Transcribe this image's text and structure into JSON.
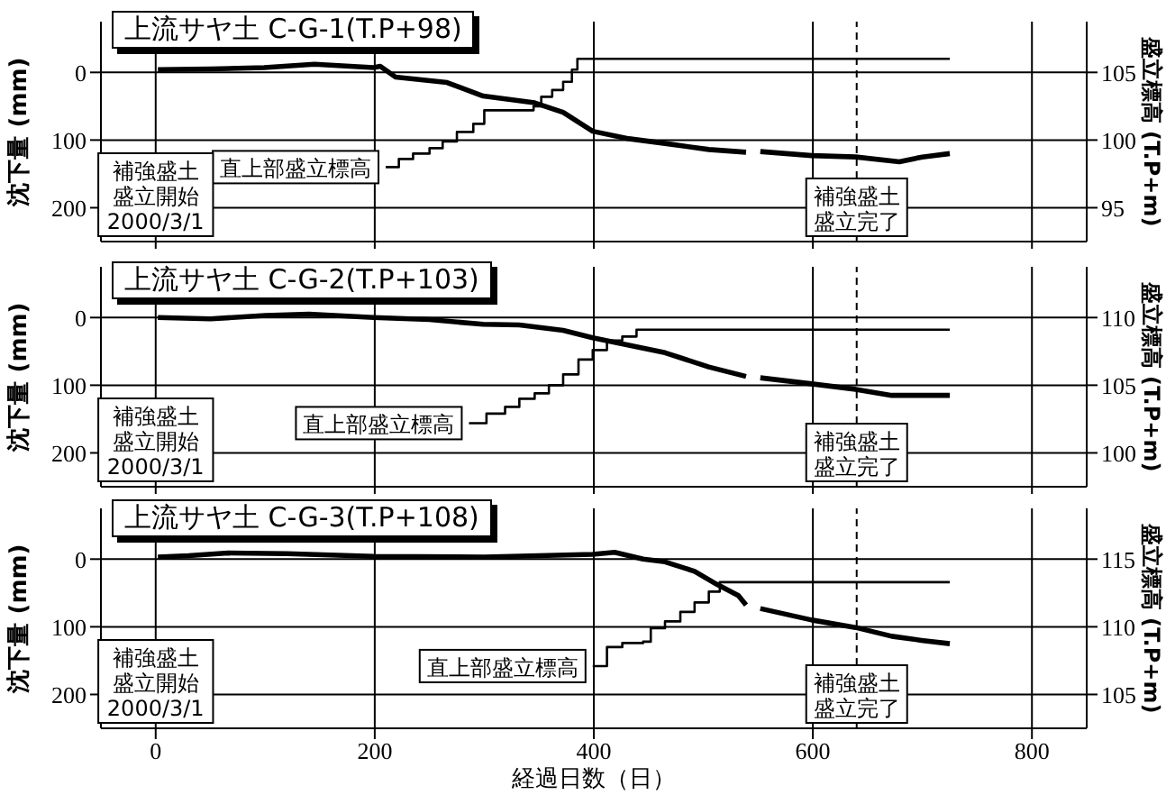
{
  "chart_data": [
    {
      "type": "line",
      "title": "上流サヤ土 C-G-1(T.P+98)",
      "ylabel": "沈下量 (mm)",
      "y2label": "盛立標高 (T.P+m)",
      "xlim": [
        -50,
        850
      ],
      "xticks": [
        0,
        200,
        400,
        600,
        800
      ],
      "ylim": [
        250,
        -75
      ],
      "yticks": [
        0,
        100,
        200
      ],
      "y2lim": [
        92.5,
        108.75
      ],
      "y2ticks": [
        95,
        100,
        105
      ],
      "grid": true,
      "tick_labels": "y",
      "ref_lines": [
        {
          "axis": "x",
          "value": 640,
          "line_style": "dashed"
        }
      ],
      "annotations": [
        "補強盛土盛立開始2000/3/1",
        "補強盛土盛立完了"
      ],
      "series": [
        {
          "color": "#000000",
          "x": [
            2,
            50,
            99,
            145,
            199,
            205,
            219,
            266,
            299,
            346,
            372,
            399,
            432,
            465,
            505,
            539,
            545,
            552,
            599,
            639,
            679,
            700,
            725
          ],
          "values": [
            -4,
            -5,
            -7,
            -12,
            -7,
            -9,
            7,
            15,
            35,
            45,
            59,
            87,
            98,
            105,
            114,
            118,
            null,
            117,
            123,
            125,
            132,
            125,
            120
          ]
        },
        {
          "type": "step",
          "name": "直上部盛立標高",
          "axis": "y2",
          "color": "#000000",
          "x": [
            210,
            222,
            235,
            250,
            262,
            275,
            290,
            300,
            345,
            352,
            362,
            372,
            380,
            385,
            725
          ],
          "values": [
            98,
            98.6,
            99,
            99.4,
            99.9,
            100.6,
            101.2,
            102.2,
            102.5,
            103.2,
            103.7,
            104.3,
            105.2,
            106,
            106
          ]
        }
      ]
    },
    {
      "type": "line",
      "title": "上流サヤ土 C-G-2(T.P+103)",
      "ylabel": "沈下量 (mm)",
      "y2label": "盛立標高 (T.P+m)",
      "xlim": [
        -50,
        850
      ],
      "xticks": [
        0,
        200,
        400,
        600,
        800
      ],
      "ylim": [
        250,
        -75
      ],
      "yticks": [
        0,
        100,
        200
      ],
      "y2lim": [
        97.5,
        113.75
      ],
      "y2ticks": [
        100,
        105,
        110
      ],
      "grid": true,
      "tick_labels": "y",
      "ref_lines": [
        {
          "axis": "x",
          "value": 640,
          "line_style": "dashed"
        }
      ],
      "annotations": [
        "補強盛土盛立開始2000/3/1",
        "補強盛土盛立完了"
      ],
      "series": [
        {
          "color": "#000000",
          "x": [
            2,
            50,
            100,
            140,
            199,
            250,
            299,
            332,
            372,
            399,
            432,
            465,
            505,
            539,
            545,
            552,
            599,
            639,
            672,
            725
          ],
          "values": [
            0,
            2,
            -3,
            -5,
            0,
            3,
            10,
            11,
            19,
            30,
            41,
            52,
            73,
            87,
            null,
            89,
            98,
            106,
            115,
            115
          ]
        },
        {
          "type": "step",
          "name": "直上部盛立標高",
          "axis": "y2",
          "color": "#000000",
          "x": [
            286,
            302,
            319,
            332,
            346,
            359,
            372,
            386,
            399,
            412,
            426,
            439,
            725
          ],
          "values": [
            102.2,
            102.9,
            103.4,
            104,
            104.4,
            105,
            105.8,
            106.9,
            107.6,
            108.3,
            108.6,
            109.1,
            109.1
          ]
        }
      ]
    },
    {
      "type": "line",
      "title": "上流サヤ土 C-G-3(T.P+108)",
      "xlabel": "経過日数（日）",
      "ylabel": "沈下量 (mm)",
      "y2label": "盛立標高 (T.P+m)",
      "xlim": [
        -50,
        850
      ],
      "xticks": [
        0,
        200,
        400,
        600,
        800
      ],
      "ylim": [
        250,
        -75
      ],
      "yticks": [
        0,
        100,
        200
      ],
      "y2lim": [
        102.5,
        118.75
      ],
      "y2ticks": [
        105,
        110,
        115
      ],
      "grid": true,
      "ref_lines": [
        {
          "axis": "x",
          "value": 640,
          "line_style": "dashed"
        }
      ],
      "annotations": [
        "補強盛土盛立開始2000/3/1",
        "補強盛土盛立完了"
      ],
      "series": [
        {
          "color": "#000000",
          "x": [
            2,
            30,
            66,
            120,
            199,
            300,
            399,
            419,
            445,
            465,
            492,
            512,
            532,
            539,
            545,
            552,
            599,
            639,
            672,
            699,
            725
          ],
          "values": [
            -3,
            -5,
            -9,
            -8,
            -4,
            -3,
            -7,
            -10,
            0,
            4,
            18,
            37,
            54,
            68,
            null,
            73,
            90,
            101,
            114,
            120,
            125
          ]
        },
        {
          "type": "step",
          "name": "直上部盛立標高",
          "axis": "y2",
          "color": "#000000",
          "x": [
            399,
            412,
            426,
            445,
            452,
            465,
            479,
            492,
            505,
            515,
            725
          ],
          "values": [
            107.1,
            108.5,
            108.8,
            108.9,
            109.9,
            110.4,
            111.1,
            111.8,
            112.6,
            113.3,
            113.3
          ]
        }
      ]
    }
  ]
}
